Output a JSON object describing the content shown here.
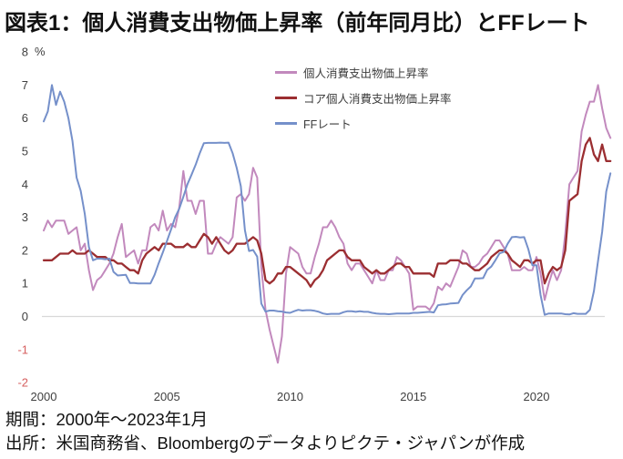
{
  "chart_data": {
    "type": "line",
    "title": "図表1：個人消費支出物価上昇率（前年同月比）とFFレート",
    "unit_label": "%",
    "xlabel": "",
    "ylabel": "",
    "ylim": [
      -2,
      8
    ],
    "xlim": [
      2000,
      2023.2
    ],
    "y_ticks": [
      8,
      7,
      6,
      5,
      4,
      3,
      2,
      1,
      0,
      -1,
      -2
    ],
    "x_ticks": [
      2000,
      2005,
      2010,
      2015,
      2020
    ],
    "grid": "single horizontal gridline at 0 only",
    "legend_position": "inside top-center",
    "colors": {
      "tick_text": "#404040",
      "negative_tick": "#d65f5f",
      "zero_line": "#d8d8d8",
      "title_text": "#111111"
    },
    "x_start": 2000,
    "x_step_years": 0.1666667,
    "x_note": "samples every 2 months from Jan 2000 to Jan 2023; x[i] = x_start + i * x_step_years",
    "series": [
      {
        "name": "個人消費支出物価上昇率",
        "color": "#c289bd",
        "values": [
          2.6,
          2.9,
          2.7,
          2.9,
          2.9,
          2.9,
          2.5,
          2.6,
          2.7,
          2.0,
          2.2,
          1.4,
          0.8,
          1.1,
          1.2,
          1.4,
          1.6,
          1.9,
          2.4,
          2.8,
          1.8,
          1.9,
          2.0,
          1.6,
          2.0,
          2.0,
          2.7,
          2.8,
          2.6,
          3.2,
          2.6,
          2.8,
          2.7,
          3.3,
          4.4,
          3.5,
          3.5,
          3.1,
          3.5,
          3.5,
          1.9,
          1.9,
          2.2,
          2.4,
          2.3,
          2.2,
          2.4,
          3.6,
          3.7,
          3.5,
          3.7,
          4.5,
          4.2,
          1.5,
          0.2,
          -0.4,
          -0.9,
          -1.4,
          -0.6,
          1.3,
          2.1,
          2.0,
          1.9,
          1.5,
          1.3,
          1.3,
          1.8,
          2.2,
          2.7,
          2.7,
          2.9,
          2.7,
          2.4,
          2.2,
          1.6,
          1.4,
          1.6,
          1.6,
          1.4,
          1.2,
          1.0,
          1.4,
          1.1,
          1.1,
          1.4,
          1.4,
          1.8,
          1.7,
          1.5,
          1.3,
          0.2,
          0.3,
          0.3,
          0.3,
          0.2,
          0.4,
          0.9,
          0.8,
          1.0,
          0.9,
          1.2,
          1.5,
          2.0,
          1.9,
          1.5,
          1.5,
          1.6,
          1.8,
          1.9,
          2.1,
          2.3,
          2.3,
          2.1,
          1.9,
          1.4,
          1.4,
          1.4,
          1.5,
          1.4,
          1.4,
          1.8,
          1.3,
          0.5,
          1.0,
          1.4,
          1.1,
          1.4,
          2.5,
          4.0,
          4.2,
          4.4,
          5.6,
          6.1,
          6.5,
          6.5,
          7.0,
          6.3,
          5.7,
          5.4
        ]
      },
      {
        "name": "コア個人消費支出物価上昇率",
        "color": "#9b2e31",
        "values": [
          1.7,
          1.7,
          1.7,
          1.8,
          1.9,
          1.9,
          1.9,
          2.0,
          1.9,
          1.9,
          1.9,
          2.0,
          1.9,
          1.8,
          1.8,
          1.8,
          1.7,
          1.7,
          1.6,
          1.6,
          1.5,
          1.4,
          1.4,
          1.3,
          1.7,
          1.9,
          2.0,
          2.1,
          2.0,
          2.2,
          2.2,
          2.2,
          2.1,
          2.1,
          2.1,
          2.2,
          2.1,
          2.1,
          2.3,
          2.5,
          2.4,
          2.2,
          2.4,
          2.2,
          2.0,
          1.9,
          2.0,
          2.2,
          2.2,
          2.2,
          2.3,
          2.4,
          2.3,
          1.9,
          1.1,
          1.0,
          1.1,
          1.3,
          1.3,
          1.5,
          1.5,
          1.4,
          1.3,
          1.2,
          1.1,
          0.9,
          1.1,
          1.2,
          1.4,
          1.7,
          1.8,
          1.9,
          2.0,
          2.0,
          1.8,
          1.7,
          1.7,
          1.7,
          1.5,
          1.4,
          1.3,
          1.4,
          1.3,
          1.3,
          1.4,
          1.5,
          1.6,
          1.6,
          1.5,
          1.5,
          1.3,
          1.3,
          1.3,
          1.3,
          1.3,
          1.2,
          1.6,
          1.6,
          1.6,
          1.7,
          1.7,
          1.7,
          1.6,
          1.6,
          1.5,
          1.4,
          1.4,
          1.5,
          1.6,
          1.8,
          1.9,
          2.0,
          2.0,
          1.9,
          1.7,
          1.6,
          1.5,
          1.7,
          1.7,
          1.6,
          1.7,
          1.7,
          1.0,
          1.3,
          1.5,
          1.4,
          1.5,
          2.0,
          3.5,
          3.6,
          3.7,
          4.7,
          5.2,
          5.4,
          4.9,
          4.7,
          5.2,
          4.7,
          4.7
        ]
      },
      {
        "name": "FFレート",
        "color": "#7590ca",
        "values": [
          5.9,
          6.2,
          7.0,
          6.4,
          6.8,
          6.5,
          6.0,
          5.3,
          4.2,
          3.8,
          3.1,
          2.1,
          1.7,
          1.75,
          1.75,
          1.73,
          1.75,
          1.35,
          1.24,
          1.25,
          1.26,
          1.01,
          1.01,
          1.0,
          1.0,
          1.0,
          1.0,
          1.26,
          1.61,
          1.93,
          2.28,
          2.63,
          3.0,
          3.26,
          3.62,
          4.0,
          4.29,
          4.59,
          4.94,
          5.24,
          5.25,
          5.25,
          5.25,
          5.26,
          5.25,
          5.26,
          4.94,
          4.49,
          3.94,
          2.61,
          1.98,
          2.01,
          1.81,
          0.39,
          0.15,
          0.18,
          0.18,
          0.16,
          0.15,
          0.12,
          0.11,
          0.16,
          0.2,
          0.18,
          0.19,
          0.19,
          0.17,
          0.14,
          0.09,
          0.07,
          0.08,
          0.08,
          0.08,
          0.13,
          0.16,
          0.16,
          0.14,
          0.16,
          0.14,
          0.14,
          0.11,
          0.09,
          0.08,
          0.08,
          0.07,
          0.08,
          0.09,
          0.09,
          0.09,
          0.09,
          0.11,
          0.11,
          0.12,
          0.13,
          0.14,
          0.12,
          0.34,
          0.36,
          0.37,
          0.39,
          0.4,
          0.41,
          0.65,
          0.79,
          0.91,
          1.15,
          1.15,
          1.16,
          1.41,
          1.51,
          1.7,
          1.91,
          1.95,
          2.2,
          2.4,
          2.41,
          2.39,
          2.4,
          2.04,
          1.55,
          1.55,
          0.65,
          0.05,
          0.09,
          0.09,
          0.09,
          0.09,
          0.07,
          0.06,
          0.1,
          0.08,
          0.08,
          0.08,
          0.2,
          0.77,
          1.68,
          2.56,
          3.78,
          4.33
        ]
      }
    ]
  },
  "notes": {
    "period": "期間：2000年～2023年1月",
    "source": "出所：米国商務省、Bloombergのデータよりピクテ・ジャパンが作成"
  }
}
